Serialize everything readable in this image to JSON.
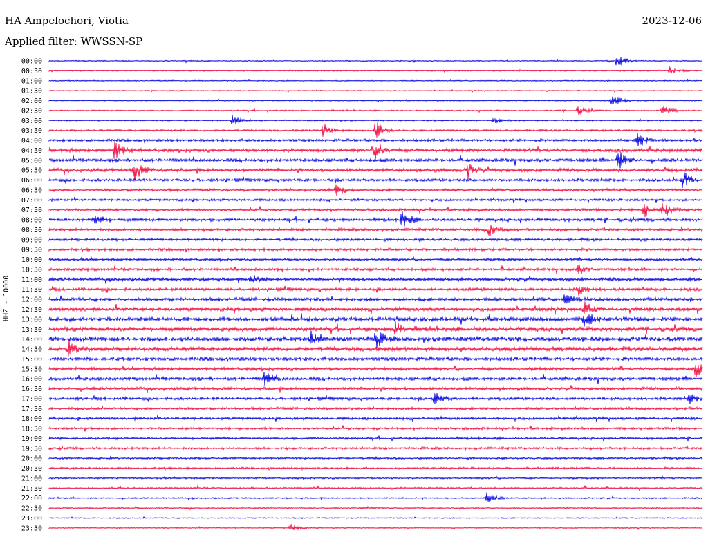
{
  "header": {
    "station": "HA Ampelochori, Viotia",
    "date": "2023-12-06",
    "filter": "Applied filter: WWSSN-SP",
    "channel_label": "HHZ - 10000"
  },
  "colors": {
    "blue": "#1010e0",
    "red": "#ee1a4a"
  },
  "chart_data": {
    "type": "line",
    "title": "HA Ampelochori, Viotia",
    "ylabel": "HHZ - 10000",
    "rows": [
      "00:00",
      "00:30",
      "01:00",
      "01:30",
      "02:00",
      "02:30",
      "03:00",
      "03:30",
      "04:00",
      "04:30",
      "05:00",
      "05:30",
      "06:00",
      "06:30",
      "07:00",
      "07:30",
      "08:00",
      "08:30",
      "09:00",
      "09:30",
      "10:00",
      "10:30",
      "11:00",
      "11:30",
      "12:00",
      "12:30",
      "13:00",
      "13:30",
      "14:00",
      "14:30",
      "15:00",
      "15:30",
      "16:00",
      "16:30",
      "17:00",
      "17:30",
      "18:00",
      "18:30",
      "19:00",
      "19:30",
      "20:00",
      "20:30",
      "21:00",
      "21:30",
      "22:00",
      "22:30",
      "23:00",
      "23:30"
    ],
    "row_colors": [
      "blue",
      "red"
    ],
    "noise_level": [
      0.6,
      0.6,
      0.6,
      0.6,
      0.6,
      0.8,
      0.7,
      1.2,
      1.6,
      2.2,
      2.0,
      2.0,
      1.8,
      1.6,
      1.4,
      1.6,
      1.8,
      1.8,
      1.6,
      1.6,
      1.4,
      1.6,
      1.8,
      1.8,
      2.0,
      2.4,
      2.6,
      2.8,
      3.0,
      2.8,
      2.2,
      2.0,
      2.0,
      1.8,
      1.8,
      1.6,
      1.6,
      1.4,
      1.4,
      1.4,
      1.2,
      1.2,
      1.0,
      1.0,
      0.8,
      0.8,
      0.6,
      0.6
    ],
    "events": [
      {
        "row": 0,
        "x": 0.87,
        "amp": 14
      },
      {
        "row": 1,
        "x": 0.95,
        "amp": 8
      },
      {
        "row": 4,
        "x": 0.86,
        "amp": 16
      },
      {
        "row": 5,
        "x": 0.81,
        "amp": 6
      },
      {
        "row": 5,
        "x": 0.94,
        "amp": 8
      },
      {
        "row": 6,
        "x": 0.28,
        "amp": 10
      },
      {
        "row": 6,
        "x": 0.68,
        "amp": 5
      },
      {
        "row": 7,
        "x": 0.42,
        "amp": 12
      },
      {
        "row": 7,
        "x": 0.5,
        "amp": 14
      },
      {
        "row": 8,
        "x": 0.9,
        "amp": 14
      },
      {
        "row": 9,
        "x": 0.1,
        "amp": 18
      },
      {
        "row": 9,
        "x": 0.5,
        "amp": 16
      },
      {
        "row": 10,
        "x": 0.87,
        "amp": 16
      },
      {
        "row": 11,
        "x": 0.13,
        "amp": 16
      },
      {
        "row": 11,
        "x": 0.64,
        "amp": 14
      },
      {
        "row": 12,
        "x": 0.97,
        "amp": 14
      },
      {
        "row": 13,
        "x": 0.44,
        "amp": 12
      },
      {
        "row": 15,
        "x": 0.91,
        "amp": 12
      },
      {
        "row": 15,
        "x": 0.94,
        "amp": 14
      },
      {
        "row": 16,
        "x": 0.07,
        "amp": 12
      },
      {
        "row": 16,
        "x": 0.54,
        "amp": 14
      },
      {
        "row": 17,
        "x": 0.67,
        "amp": 14
      },
      {
        "row": 21,
        "x": 0.81,
        "amp": 8
      },
      {
        "row": 22,
        "x": 0.31,
        "amp": 8
      },
      {
        "row": 23,
        "x": 0.81,
        "amp": 10
      },
      {
        "row": 24,
        "x": 0.79,
        "amp": 8
      },
      {
        "row": 25,
        "x": 0.82,
        "amp": 12
      },
      {
        "row": 26,
        "x": 0.82,
        "amp": 14
      },
      {
        "row": 27,
        "x": 0.53,
        "amp": 12
      },
      {
        "row": 28,
        "x": 0.4,
        "amp": 12
      },
      {
        "row": 28,
        "x": 0.5,
        "amp": 14
      },
      {
        "row": 29,
        "x": 0.03,
        "amp": 10
      },
      {
        "row": 31,
        "x": 0.99,
        "amp": 12
      },
      {
        "row": 32,
        "x": 0.33,
        "amp": 12
      },
      {
        "row": 34,
        "x": 0.59,
        "amp": 12
      },
      {
        "row": 34,
        "x": 0.98,
        "amp": 8
      },
      {
        "row": 44,
        "x": 0.67,
        "amp": 10
      },
      {
        "row": 47,
        "x": 0.37,
        "amp": 6
      }
    ]
  }
}
